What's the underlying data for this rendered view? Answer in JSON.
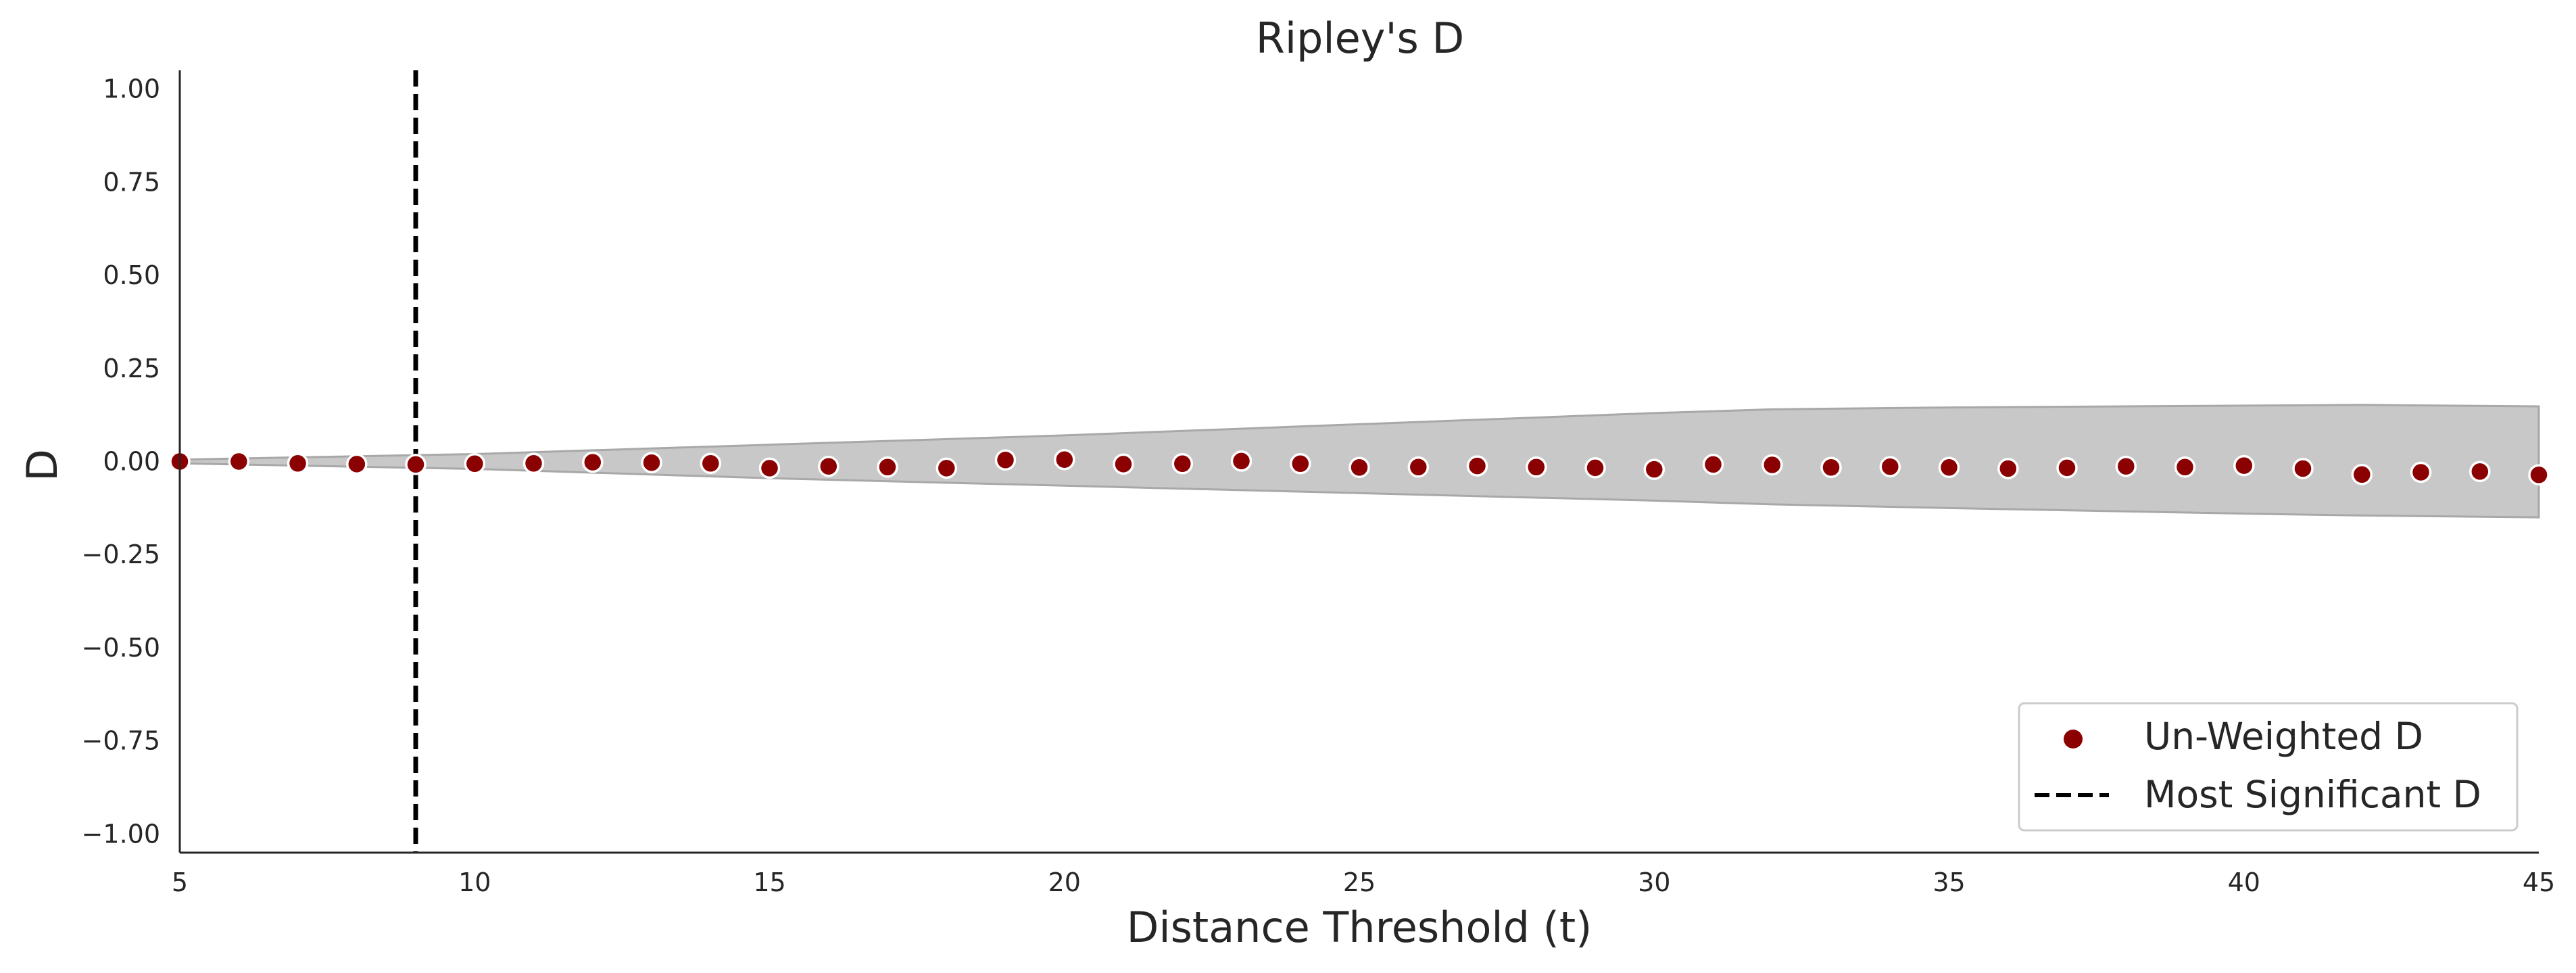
{
  "chart_data": {
    "type": "scatter",
    "title": "Ripley's D",
    "xlabel": "Distance Threshold (t)",
    "ylabel": "D",
    "xlim": [
      5,
      45
    ],
    "ylim": [
      -1.05,
      1.05
    ],
    "x_ticks": [
      5,
      10,
      15,
      20,
      25,
      30,
      35,
      40,
      45
    ],
    "y_ticks": [
      1.0,
      0.75,
      0.5,
      0.25,
      0.0,
      -0.25,
      -0.5,
      -0.75,
      -1.0
    ],
    "y_tick_labels": [
      "1.00",
      "0.75",
      "0.50",
      "0.25",
      "0.00",
      "−0.25",
      "−0.50",
      "−0.75",
      "−1.00"
    ],
    "series": [
      {
        "name": "Un-Weighted D",
        "color": "#8b0000",
        "x": [
          5,
          6,
          7,
          8,
          9,
          10,
          11,
          12,
          13,
          14,
          15,
          16,
          17,
          18,
          19,
          20,
          21,
          22,
          23,
          24,
          25,
          26,
          27,
          28,
          29,
          30,
          31,
          32,
          33,
          34,
          35,
          36,
          37,
          38,
          39,
          40,
          41,
          42,
          43,
          44,
          45
        ],
        "values": [
          0.0,
          0.0,
          -0.005,
          -0.007,
          -0.008,
          -0.006,
          -0.005,
          -0.002,
          -0.003,
          -0.005,
          -0.018,
          -0.013,
          -0.015,
          -0.018,
          0.004,
          0.005,
          -0.007,
          -0.006,
          0.001,
          -0.006,
          -0.016,
          -0.015,
          -0.012,
          -0.015,
          -0.017,
          -0.021,
          -0.008,
          -0.009,
          -0.016,
          -0.014,
          -0.016,
          -0.019,
          -0.017,
          -0.013,
          -0.015,
          -0.011,
          -0.019,
          -0.035,
          -0.029,
          -0.027,
          -0.036
        ]
      }
    ],
    "envelope": {
      "color": "#c8c8c8",
      "edge_color": "#a8a8a8",
      "x": [
        5,
        10,
        15,
        20,
        25,
        30,
        32,
        35,
        40,
        42,
        45
      ],
      "upper": [
        0.005,
        0.02,
        0.045,
        0.07,
        0.1,
        0.13,
        0.14,
        0.145,
        0.15,
        0.152,
        0.148
      ],
      "lower": [
        -0.005,
        -0.02,
        -0.045,
        -0.065,
        -0.085,
        -0.105,
        -0.115,
        -0.125,
        -0.14,
        -0.145,
        -0.15
      ]
    },
    "vline": {
      "name": "Most Significant D",
      "x": 9,
      "style": "dashed",
      "color": "#000000"
    },
    "legend": {
      "placement": "lower-right",
      "entries": [
        {
          "label": "Un-Weighted D",
          "kind": "marker"
        },
        {
          "label": "Most Significant D",
          "kind": "dashed-line"
        }
      ]
    },
    "grid": false
  }
}
